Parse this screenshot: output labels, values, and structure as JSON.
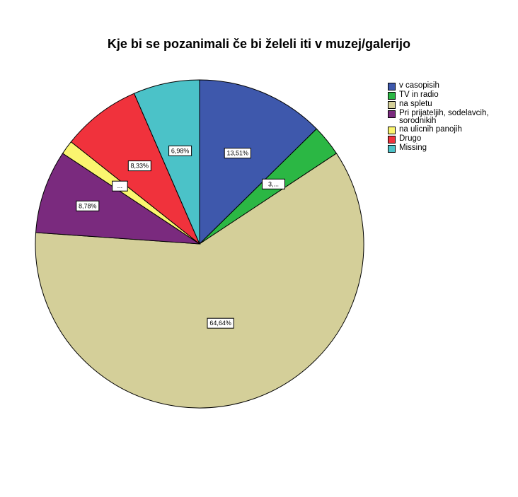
{
  "chart_data": {
    "type": "pie",
    "title": "Kje bi se pozanimali če bi želeli iti v muzej/galerijo",
    "slices": [
      {
        "label": "v casopisih",
        "value": 13.51,
        "data_label": "13,51%",
        "color": "#3e58ac"
      },
      {
        "label": "TV in radio",
        "value": 3.28,
        "data_label": "3,...",
        "color": "#2bb744"
      },
      {
        "label": "na spletu",
        "value": 64.64,
        "data_label": "64,64%",
        "color": "#d4cf99"
      },
      {
        "label": "Pri prijateljih, sodelavcih, sorodnikih",
        "value": 8.78,
        "data_label": "8,78%",
        "color": "#7a2a7e"
      },
      {
        "label": "na ulicnih panojih",
        "value": 1.48,
        "data_label": "...",
        "color": "#fbf56f"
      },
      {
        "label": "Drugo",
        "value": 8.33,
        "data_label": "8,33%",
        "color": "#f0323c"
      },
      {
        "label": "Missing",
        "value": 6.98,
        "data_label": "6,98%",
        "color": "#4bc2c8"
      }
    ],
    "legend_position": "right",
    "start_angle": "12 o'clock",
    "direction": "clockwise"
  }
}
